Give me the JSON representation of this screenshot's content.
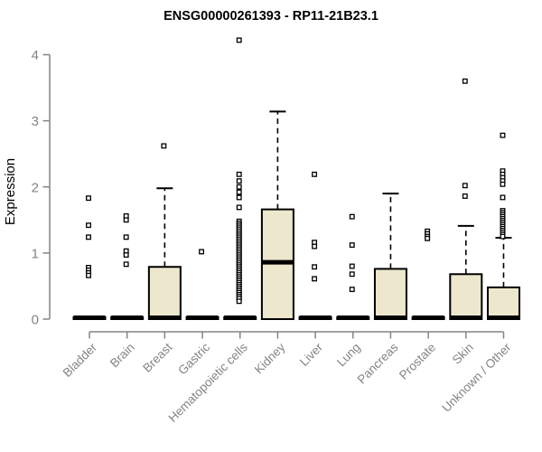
{
  "chart_data": {
    "type": "boxplot",
    "title": "ENSG00000261393 - RP11-21B23.1",
    "ylabel": "Expression",
    "xlabel": "",
    "ylim": [
      0,
      4
    ],
    "yticks": [
      0,
      1,
      2,
      3,
      4
    ],
    "grid": false,
    "legend": "none",
    "colors": {
      "box_fill": "#ece7cd",
      "box_stroke": "#000000",
      "median": "#000000",
      "whisker": "#000000",
      "outlier_stroke": "#000000",
      "outlier_fill": "#ffffff",
      "axis": "#848484",
      "tick_label": "#848484",
      "title": "#000000"
    },
    "categories": [
      "Bladder",
      "Brain",
      "Breast",
      "Gastric",
      "Hematopoietic cells",
      "Kidney",
      "Liver",
      "Lung",
      "Pancreas",
      "Prostate",
      "Skin",
      "Unknown / Other"
    ],
    "series": [
      {
        "name": "Bladder",
        "whisker_low": 0,
        "q1": 0,
        "median": 0.02,
        "q3": 0.03,
        "whisker_high": 0.03,
        "outliers": [
          1.83,
          1.42,
          1.24,
          0.78,
          0.74,
          0.7,
          0.66
        ]
      },
      {
        "name": "Brain",
        "whisker_low": 0,
        "q1": 0,
        "median": 0.02,
        "q3": 0.03,
        "whisker_high": 0.03,
        "outliers": [
          1.56,
          1.5,
          1.24,
          1.03,
          0.97,
          0.83
        ]
      },
      {
        "name": "Breast",
        "whisker_low": 0,
        "q1": 0,
        "median": 0.02,
        "q3": 0.79,
        "whisker_high": 1.98,
        "outliers": [
          2.62
        ]
      },
      {
        "name": "Gastric",
        "whisker_low": 0,
        "q1": 0,
        "median": 0.02,
        "q3": 0.03,
        "whisker_high": 0.03,
        "outliers": [
          1.02
        ]
      },
      {
        "name": "Hematopoietic cells",
        "whisker_low": 0,
        "q1": 0,
        "median": 0.02,
        "q3": 0.03,
        "whisker_high": 0.03,
        "outliers": [
          4.22,
          2.19,
          2.09,
          2.0,
          1.92,
          1.84,
          1.69,
          1.48,
          1.45,
          1.42,
          1.39,
          1.36,
          1.33,
          1.3,
          1.27,
          1.24,
          1.21,
          1.18,
          1.15,
          1.12,
          1.09,
          1.06,
          1.03,
          1.0,
          0.97,
          0.94,
          0.91,
          0.88,
          0.85,
          0.82,
          0.79,
          0.76,
          0.73,
          0.7,
          0.67,
          0.64,
          0.61,
          0.58,
          0.55,
          0.52,
          0.49,
          0.46,
          0.43,
          0.4,
          0.37,
          0.34,
          0.31,
          0.27
        ]
      },
      {
        "name": "Kidney",
        "whisker_low": 0,
        "q1": 0,
        "median": 0.86,
        "q3": 1.66,
        "whisker_high": 3.14,
        "outliers": []
      },
      {
        "name": "Liver",
        "whisker_low": 0,
        "q1": 0,
        "median": 0.02,
        "q3": 0.03,
        "whisker_high": 0.03,
        "outliers": [
          2.19,
          1.16,
          1.1,
          0.79,
          0.61
        ]
      },
      {
        "name": "Lung",
        "whisker_low": 0,
        "q1": 0,
        "median": 0.02,
        "q3": 0.03,
        "whisker_high": 0.03,
        "outliers": [
          1.55,
          1.12,
          0.8,
          0.68,
          0.45
        ]
      },
      {
        "name": "Pancreas",
        "whisker_low": 0,
        "q1": 0,
        "median": 0.02,
        "q3": 0.76,
        "whisker_high": 1.9,
        "outliers": []
      },
      {
        "name": "Prostate",
        "whisker_low": 0,
        "q1": 0,
        "median": 0.02,
        "q3": 0.03,
        "whisker_high": 0.03,
        "outliers": [
          1.33,
          1.29,
          1.25,
          1.22
        ]
      },
      {
        "name": "Skin",
        "whisker_low": 0,
        "q1": 0,
        "median": 0.02,
        "q3": 0.68,
        "whisker_high": 1.41,
        "outliers": [
          3.6,
          2.02,
          1.86
        ]
      },
      {
        "name": "Unknown / Other",
        "whisker_low": 0,
        "q1": 0,
        "median": 0.02,
        "q3": 0.48,
        "whisker_high": 1.23,
        "outliers": [
          2.78,
          2.24,
          2.19,
          2.14,
          2.09,
          2.04,
          1.84,
          1.64,
          1.61,
          1.58,
          1.55,
          1.52,
          1.49,
          1.46,
          1.43,
          1.4,
          1.37,
          1.34,
          1.31,
          1.28,
          1.25
        ]
      }
    ]
  }
}
